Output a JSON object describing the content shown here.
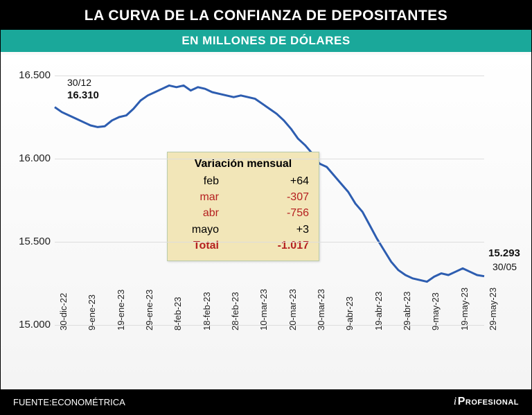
{
  "header": {
    "title": "LA CURVA DE LA CONFIANZA DE DEPOSITANTES",
    "subtitle": "EN MILLONES DE DÓLARES"
  },
  "footer": {
    "source_label": "FUENTE:ECONOMÉTRICA",
    "brand_i": "i",
    "brand_rest": "Profesional"
  },
  "chart": {
    "type": "line",
    "ylim": [
      15000,
      16500
    ],
    "ytick_step": 500,
    "ytick_labels": [
      "15.000",
      "15.500",
      "16.000",
      "16.500"
    ],
    "x_labels": [
      "30-dic-22",
      "9-ene-23",
      "19-ene-23",
      "29-ene-23",
      "8-feb-23",
      "18-feb-23",
      "28-feb-23",
      "10-mar-23",
      "20-mar-23",
      "30-mar-23",
      "9-abr-23",
      "19-abr-23",
      "29-abr-23",
      "9-may-23",
      "19-may-23",
      "29-may-23"
    ],
    "line_color": "#2d5db0",
    "line_width": 3,
    "grid_color": "#dddddd",
    "background_color": "#fafafa",
    "axis_font_size": 14,
    "series": [
      16310,
      16280,
      16260,
      16240,
      16220,
      16200,
      16190,
      16195,
      16230,
      16250,
      16260,
      16300,
      16350,
      16380,
      16400,
      16420,
      16440,
      16430,
      16440,
      16410,
      16430,
      16420,
      16400,
      16390,
      16380,
      16370,
      16380,
      16370,
      16360,
      16330,
      16300,
      16270,
      16230,
      16180,
      16120,
      16080,
      16030,
      15970,
      15950,
      15900,
      15850,
      15800,
      15730,
      15680,
      15600,
      15520,
      15450,
      15380,
      15330,
      15300,
      15280,
      15270,
      15260,
      15290,
      15310,
      15300,
      15320,
      15340,
      15320,
      15300,
      15293
    ],
    "annotations": {
      "start_date": "30/12",
      "start_value": "16.310",
      "end_value": "15.293",
      "end_date": "30/05"
    },
    "variation_box": {
      "title": "Variación mensual",
      "rows": [
        {
          "label": "feb",
          "value": "+64",
          "neg": false
        },
        {
          "label": "mar",
          "value": "-307",
          "neg": true
        },
        {
          "label": "abr",
          "value": "-756",
          "neg": true
        },
        {
          "label": "mayo",
          "value": "+3",
          "neg": false
        }
      ],
      "total_label": "Total",
      "total_value": "-1.017"
    }
  }
}
